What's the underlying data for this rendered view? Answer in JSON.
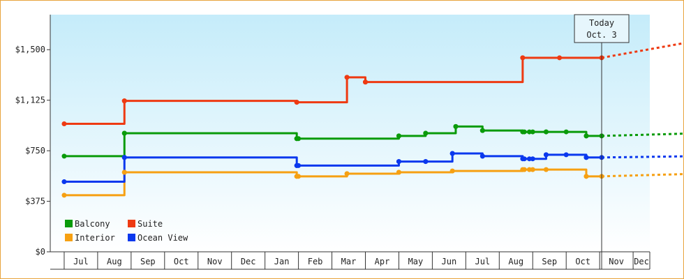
{
  "chart_data": {
    "type": "line",
    "title": "",
    "xlabel": "",
    "ylabel": "",
    "ylim": [
      0,
      1760
    ],
    "y_ticks": [
      0,
      375,
      750,
      1125,
      1500
    ],
    "y_tick_labels": [
      "$0",
      "$375",
      "$750",
      "$1,125",
      "$1,500"
    ],
    "x_ticks": [
      {
        "label": "Jul",
        "start": "Jul 1",
        "end": "Aug 1"
      },
      {
        "label": "Aug",
        "start": "Aug 1",
        "end": "Sep 1"
      },
      {
        "label": "Sep",
        "start": "Sep 1",
        "end": "Oct 1"
      },
      {
        "label": "Oct",
        "start": "Oct 1",
        "end": "Nov 1"
      },
      {
        "label": "Nov",
        "start": "Nov 1",
        "end": "Dec 1"
      },
      {
        "label": "Dec",
        "start": "Dec 1",
        "end": "Jan 1"
      },
      {
        "label": "Jan",
        "start": "Jan 1",
        "end": "Feb 1"
      },
      {
        "label": "Feb",
        "start": "Feb 1",
        "end": "Mar 1"
      },
      {
        "label": "Mar",
        "start": "Mar 1",
        "end": "Apr 1"
      },
      {
        "label": "Apr",
        "start": "Apr 1",
        "end": "May 1"
      },
      {
        "label": "May",
        "start": "May 1",
        "end": "Jun 1"
      },
      {
        "label": "Jun",
        "start": "Jun 1",
        "end": "Jul 1"
      },
      {
        "label": "Jul",
        "start": "Jul 1",
        "end": "Aug 1"
      },
      {
        "label": "Aug",
        "start": "Aug 1",
        "end": "Sep 1"
      },
      {
        "label": "Sep",
        "start": "Sep 1",
        "end": "Oct 1"
      },
      {
        "label": "Oct",
        "start": "Oct 1",
        "end": "Nov 1"
      },
      {
        "label": "Nov",
        "start": "Nov 1",
        "end": "Dec 1"
      },
      {
        "label": "Dec",
        "start": "Dec 1",
        "end": "Dec 31"
      }
    ],
    "x_start": "Jun 1",
    "today": {
      "line1": "Today",
      "line2": "Oct. 3",
      "month_index": 16.06
    },
    "legend": {
      "placement": "bottom-left"
    },
    "grid": false,
    "background_gradient": [
      "#ffffff",
      "#c5ecfa"
    ],
    "series": [
      {
        "name": "Balcony",
        "color": "#0a9b0a",
        "points": [
          [
            0,
            710
          ],
          [
            1.8,
            710
          ],
          [
            1.8,
            880
          ],
          [
            6.95,
            880
          ],
          [
            6.95,
            840
          ],
          [
            10.0,
            840
          ],
          [
            10.0,
            860
          ],
          [
            10.8,
            860
          ],
          [
            10.8,
            880
          ],
          [
            11.7,
            880
          ],
          [
            11.7,
            930
          ],
          [
            12.5,
            930
          ],
          [
            12.5,
            900
          ],
          [
            13.7,
            900
          ],
          [
            13.7,
            890
          ],
          [
            15.6,
            890
          ],
          [
            15.6,
            860
          ],
          [
            16.06,
            860
          ]
        ],
        "forecast": [
          [
            16.06,
            860
          ],
          [
            19.0,
            880
          ]
        ]
      },
      {
        "name": "Suite",
        "color": "#ee3a12",
        "points": [
          [
            0,
            950
          ],
          [
            1.8,
            950
          ],
          [
            1.8,
            1120
          ],
          [
            6.95,
            1120
          ],
          [
            6.95,
            1110
          ],
          [
            8.45,
            1110
          ],
          [
            8.45,
            1295
          ],
          [
            9.0,
            1295
          ],
          [
            9.0,
            1260
          ],
          [
            13.7,
            1260
          ],
          [
            13.7,
            1440
          ],
          [
            16.06,
            1440
          ]
        ],
        "forecast": [
          [
            16.06,
            1440
          ],
          [
            19.0,
            1570
          ]
        ]
      },
      {
        "name": "Interior",
        "color": "#f6a012",
        "points": [
          [
            0,
            420
          ],
          [
            1.8,
            420
          ],
          [
            1.8,
            590
          ],
          [
            6.95,
            590
          ],
          [
            6.95,
            560
          ],
          [
            8.45,
            560
          ],
          [
            8.45,
            580
          ],
          [
            10.0,
            580
          ],
          [
            10.0,
            590
          ],
          [
            11.6,
            590
          ],
          [
            11.6,
            600
          ],
          [
            13.7,
            600
          ],
          [
            13.7,
            610
          ],
          [
            15.6,
            610
          ],
          [
            15.6,
            560
          ],
          [
            16.06,
            560
          ]
        ],
        "forecast": [
          [
            16.06,
            560
          ],
          [
            19.0,
            580
          ]
        ]
      },
      {
        "name": "Ocean View",
        "color": "#0a38ee",
        "points": [
          [
            0,
            520
          ],
          [
            1.8,
            520
          ],
          [
            1.8,
            700
          ],
          [
            6.95,
            700
          ],
          [
            6.95,
            640
          ],
          [
            10.0,
            640
          ],
          [
            10.0,
            670
          ],
          [
            11.6,
            670
          ],
          [
            11.6,
            730
          ],
          [
            12.5,
            730
          ],
          [
            12.5,
            710
          ],
          [
            13.7,
            710
          ],
          [
            13.7,
            690
          ],
          [
            14.4,
            690
          ],
          [
            14.4,
            720
          ],
          [
            15.6,
            720
          ],
          [
            15.6,
            700
          ],
          [
            16.06,
            700
          ]
        ],
        "forecast": [
          [
            16.06,
            700
          ],
          [
            19.0,
            710
          ]
        ]
      }
    ],
    "markers": [
      {
        "series": 0,
        "x": [
          0,
          1.8,
          1.8,
          6.95,
          6.95,
          7.0,
          10.0,
          10.0,
          10.8,
          10.8,
          11.7,
          11.7,
          12.5,
          12.5,
          13.7,
          13.75,
          13.9,
          14.0,
          14.4,
          14.4,
          15.0,
          15.6,
          15.6,
          16.06
        ]
      },
      {
        "series": 1,
        "x": [
          0,
          1.8,
          1.8,
          6.95,
          6.95,
          8.45,
          8.45,
          9.0,
          9.0,
          13.7,
          13.7,
          14.8,
          16.06
        ]
      },
      {
        "series": 2,
        "x": [
          0,
          1.8,
          1.8,
          6.95,
          6.95,
          7.0,
          8.45,
          8.45,
          10.0,
          10.0,
          11.6,
          13.7,
          13.75,
          13.9,
          14.0,
          14.4,
          15.6,
          15.6,
          16.06
        ]
      },
      {
        "series": 3,
        "x": [
          0,
          1.8,
          1.8,
          6.95,
          6.95,
          7.0,
          10.0,
          10.0,
          10.8,
          10.8,
          11.6,
          11.6,
          12.5,
          12.5,
          13.7,
          13.75,
          13.9,
          14.0,
          14.4,
          14.4,
          15.0,
          15.6,
          15.6,
          16.06
        ]
      }
    ]
  }
}
